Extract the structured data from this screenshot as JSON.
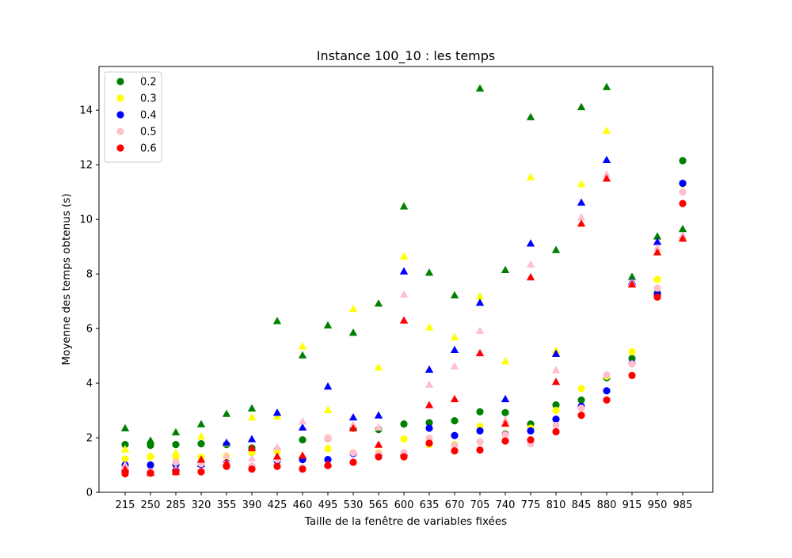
{
  "chart_data": {
    "type": "scatter",
    "title": "Instance 100_10 : les temps",
    "xlabel": "Taille de la fenêtre de variables fixées",
    "ylabel": "Moyenne des temps obtenus (s)",
    "ylim": [
      0,
      15.6
    ],
    "yticks": [
      0,
      2,
      4,
      6,
      8,
      10,
      12,
      14
    ],
    "categories": [
      "215",
      "250",
      "285",
      "320",
      "355",
      "390",
      "425",
      "460",
      "495",
      "530",
      "565",
      "600",
      "635",
      "670",
      "705",
      "740",
      "775",
      "810",
      "845",
      "880",
      "915",
      "950",
      "985"
    ],
    "legend_position": "upper-left",
    "grid": false,
    "marker_note": "circles and triangles per series",
    "series": [
      {
        "name": "0.2",
        "color": "#008000",
        "circles": [
          1.75,
          1.72,
          1.75,
          1.78,
          1.75,
          1.62,
          1.55,
          1.92,
          1.98,
          2.35,
          2.3,
          2.5,
          2.55,
          2.62,
          2.95,
          2.92,
          2.5,
          3.2,
          3.38,
          4.2,
          4.9,
          7.3,
          12.15
        ],
        "triangles": [
          2.35,
          1.9,
          2.2,
          2.5,
          2.88,
          3.08,
          6.28,
          5.02,
          6.12,
          5.85,
          6.92,
          10.48,
          8.05,
          7.22,
          14.8,
          8.15,
          13.75,
          8.88,
          14.12,
          14.85,
          7.9,
          9.38,
          9.65
        ]
      },
      {
        "name": "0.3",
        "color": "#ffff00",
        "circles": [
          1.22,
          1.3,
          1.25,
          1.28,
          1.32,
          1.45,
          1.5,
          1.22,
          1.6,
          1.45,
          1.45,
          1.95,
          1.75,
          1.75,
          2.42,
          2.15,
          2.35,
          3.0,
          3.8,
          4.25,
          5.15,
          7.8,
          11.3
        ],
        "triangles": [
          1.58,
          1.35,
          1.45,
          2.05,
          1.8,
          2.75,
          2.78,
          5.35,
          3.02,
          6.72,
          4.58,
          8.65,
          6.05,
          5.68,
          7.18,
          4.8,
          11.55,
          5.2,
          11.3,
          13.25,
          7.7,
          8.95,
          9.38
        ]
      },
      {
        "name": "0.4",
        "color": "#0000ff",
        "circles": [
          1.0,
          1.0,
          1.02,
          1.02,
          1.08,
          0.95,
          1.15,
          1.2,
          1.2,
          1.42,
          1.38,
          1.35,
          2.35,
          2.08,
          2.25,
          2.12,
          2.25,
          2.68,
          3.15,
          3.72,
          4.72,
          7.25,
          11.32
        ],
        "triangles": [
          0.9,
          0.85,
          0.9,
          1.05,
          1.82,
          1.95,
          2.92,
          2.38,
          3.88,
          2.75,
          2.82,
          8.1,
          4.5,
          5.22,
          6.95,
          3.42,
          9.12,
          5.08,
          10.62,
          12.18,
          7.72,
          9.18,
          9.4
        ]
      },
      {
        "name": "0.5",
        "color": "#ffc0cb",
        "circles": [
          0.85,
          0.75,
          1.1,
          1.05,
          1.05,
          0.95,
          1.2,
          0.9,
          2.0,
          1.45,
          1.42,
          1.45,
          1.98,
          1.72,
          1.85,
          2.1,
          1.78,
          2.45,
          3.08,
          4.3,
          4.7,
          7.48,
          11.0
        ],
        "triangles": [
          1.0,
          0.75,
          0.85,
          1.1,
          1.35,
          1.25,
          1.65,
          2.6,
          1.98,
          2.48,
          2.38,
          7.25,
          3.95,
          4.62,
          5.92,
          2.65,
          8.35,
          4.48,
          10.08,
          11.65,
          7.68,
          8.95,
          9.4
        ]
      },
      {
        "name": "0.6",
        "color": "#ff0000",
        "circles": [
          0.68,
          0.7,
          0.75,
          0.75,
          0.95,
          0.85,
          0.95,
          0.85,
          0.98,
          1.1,
          1.3,
          1.3,
          1.8,
          1.52,
          1.55,
          1.88,
          1.92,
          2.22,
          2.82,
          3.38,
          4.28,
          7.15,
          10.58
        ],
        "triangles": [
          0.85,
          0.72,
          0.75,
          1.2,
          1.08,
          1.62,
          1.32,
          1.35,
          1.05,
          2.35,
          1.75,
          6.3,
          3.2,
          3.42,
          5.1,
          2.52,
          7.88,
          4.05,
          9.85,
          11.5,
          7.62,
          8.8,
          9.3
        ]
      }
    ]
  }
}
